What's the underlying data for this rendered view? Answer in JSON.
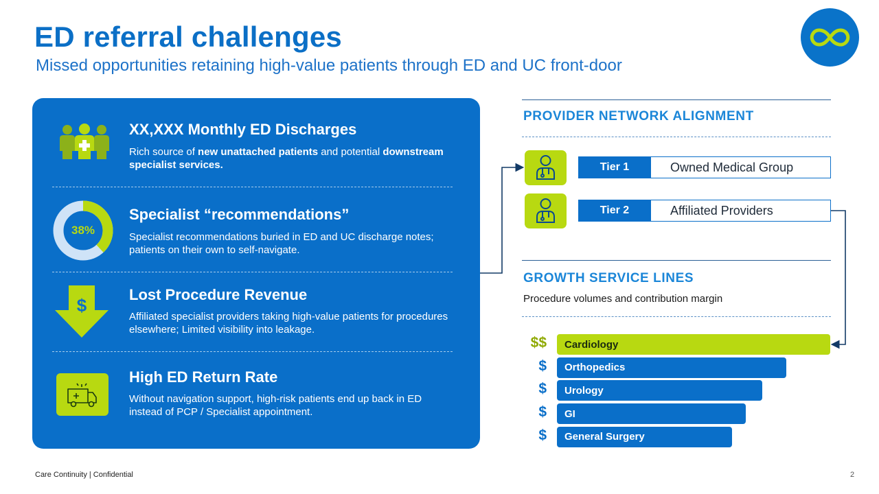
{
  "header": {
    "title": "ED referral challenges",
    "subtitle": "Missed opportunities retaining high-value patients through ED and UC front-door",
    "logo_icon": "infinity-icon"
  },
  "panel": {
    "items": [
      {
        "icon": "patients-group-icon",
        "title": "XX,XXX Monthly ED Discharges",
        "desc": [
          {
            "text": "Rich source of ",
            "bold": false
          },
          {
            "text": "new unattached patients",
            "bold": true
          },
          {
            "text": " and potential ",
            "bold": false
          },
          {
            "text": "downstream specialist services.",
            "bold": true
          }
        ]
      },
      {
        "icon": "donut-gauge-icon",
        "percent_label": "38%",
        "percent_value": 0.38,
        "title": "Specialist “recommendations”",
        "desc": [
          {
            "text": "Specialist recommendations buried in ED and UC discharge notes; patients on their own to self-navigate.",
            "bold": false
          }
        ]
      },
      {
        "icon": "down-arrow-dollar-icon",
        "icon_glyph": "$",
        "title": "Lost Procedure Revenue",
        "desc": [
          {
            "text": "Affiliated specialist providers taking high-value patients for procedures elsewhere; Limited visibility into leakage.",
            "bold": false
          }
        ]
      },
      {
        "icon": "ambulance-icon",
        "title": "High ED Return Rate",
        "desc": [
          {
            "text": "Without navigation support, high-risk patients end up back in ED instead of PCP / Specialist appointment.",
            "bold": false
          }
        ]
      }
    ]
  },
  "provider_network": {
    "title": "PROVIDER NETWORK ALIGNMENT",
    "tiers": [
      {
        "label": "Tier 1",
        "value": "Owned Medical Group",
        "icon": "doctor-icon"
      },
      {
        "label": "Tier 2",
        "value": "Affiliated Providers",
        "icon": "doctor-icon"
      }
    ]
  },
  "growth": {
    "title": "GROWTH SERVICE LINES",
    "subtitle": "Procedure volumes and contribution margin",
    "bars": [
      {
        "label": "Cardiology",
        "dollar": "$$",
        "relative_length": 1.0,
        "highlight": true
      },
      {
        "label": "Orthopedics",
        "dollar": "$",
        "relative_length": 0.84,
        "highlight": false
      },
      {
        "label": "Urology",
        "dollar": "$",
        "relative_length": 0.75,
        "highlight": false
      },
      {
        "label": "GI",
        "dollar": "$",
        "relative_length": 0.69,
        "highlight": false
      },
      {
        "label": "General Surgery",
        "dollar": "$",
        "relative_length": 0.64,
        "highlight": false
      }
    ]
  },
  "colors": {
    "primary_blue": "#0a6fc9",
    "accent_green": "#b8d911",
    "title_blue": "#0b6fc6"
  },
  "footer": {
    "text": "Care Continuity | Confidential",
    "page_number": "2"
  }
}
